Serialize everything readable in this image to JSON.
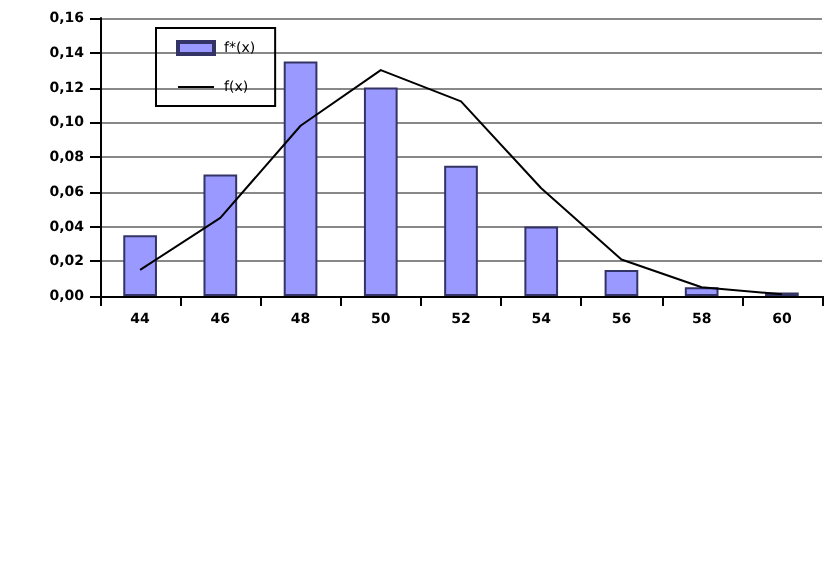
{
  "chart_data": {
    "type": "bar",
    "categories": [
      "44",
      "46",
      "48",
      "50",
      "52",
      "54",
      "56",
      "58",
      "60"
    ],
    "series": [
      {
        "name": "f*(x)",
        "color": "#9999ff",
        "values": [
          0.035,
          0.07,
          0.135,
          0.12,
          0.075,
          0.04,
          0.015,
          0.005,
          0.002
        ]
      },
      {
        "name": "f(x)",
        "type": "line",
        "color": "#000000",
        "values": [
          0.015,
          0.045,
          0.098,
          0.13,
          0.112,
          0.062,
          0.021,
          0.005,
          0.001
        ]
      }
    ],
    "ylim": [
      0,
      0.16
    ],
    "yticks": [
      {
        "value": 0,
        "label": "0,00"
      },
      {
        "value": 0.02,
        "label": "0,02"
      },
      {
        "value": 0.04,
        "label": "0,04"
      },
      {
        "value": 0.06,
        "label": "0,06"
      },
      {
        "value": 0.08,
        "label": "0,08"
      },
      {
        "value": 0.1,
        "label": "0,10"
      },
      {
        "value": 0.12,
        "label": "0,12"
      },
      {
        "value": 0.14,
        "label": "0,14"
      },
      {
        "value": 0.16,
        "label": "0,16"
      }
    ],
    "grid": "y",
    "legend": "top left",
    "marker": "none",
    "line_style": "solid"
  }
}
